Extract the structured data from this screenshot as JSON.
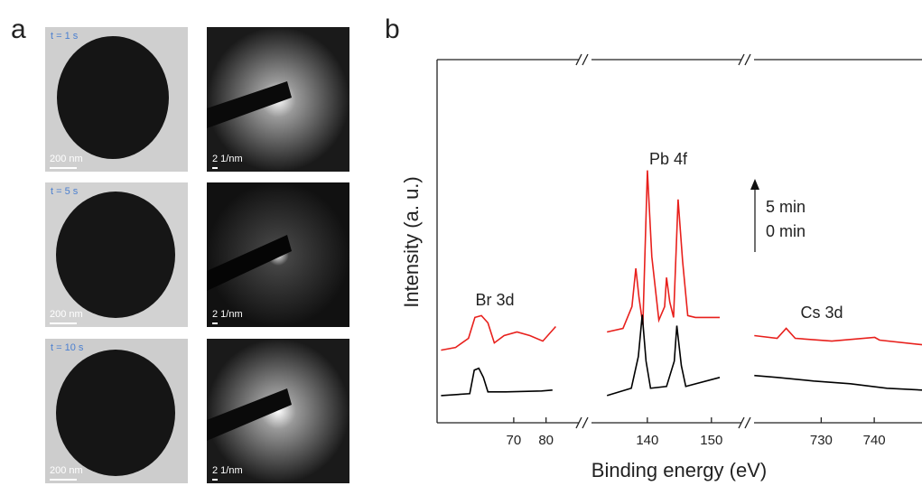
{
  "panel_a": {
    "label": "a",
    "rows": [
      {
        "time": "t = 1 s",
        "scale_real": "200 nm",
        "scale_diffraction": "2 1/nm"
      },
      {
        "time": "t = 5 s",
        "scale_real": "200 nm",
        "scale_diffraction": "2 1/nm"
      },
      {
        "time": "t = 10 s",
        "scale_real": "200 nm",
        "scale_diffraction": "2 1/nm"
      }
    ]
  },
  "chart_data": {
    "type": "line",
    "panel_label": "b",
    "x_label": "Binding energy (eV)",
    "y_label": "Intensity (a. u.)",
    "ylim": [
      0,
      100
    ],
    "series": [
      {
        "name": "5 min",
        "color": "#e8201c"
      },
      {
        "name": "0 min",
        "color": "#000000"
      }
    ],
    "segments": [
      {
        "label": "Br 3d",
        "xlim": [
          46,
          84
        ],
        "xticks": [
          70,
          80
        ],
        "data": [
          {
            "x": [
              47.5,
              52,
              56,
              58,
              60,
              62,
              64,
              67,
              71,
              75,
              79,
              83
            ],
            "values": [
              20,
              20.75,
              23.25,
              29,
              29.5,
              27.5,
              22,
              24,
              25,
              24,
              22.5,
              26.5
            ]
          },
          {
            "x": [
              47.5,
              56.4,
              57.8,
              59.2,
              60.6,
              62,
              67.5,
              78.6,
              82
            ],
            "values": [
              7.5,
              8,
              14.5,
              15,
              12.5,
              8.5,
              8.5,
              8.75,
              9
            ]
          }
        ]
      },
      {
        "label": "Pb 4f",
        "xlim": [
          131,
          152
        ],
        "xticks": [
          140,
          150
        ],
        "data": [
          {
            "x": [
              133.7,
              136.2,
              137.6,
              138.2,
              138.7,
              139.3,
              140,
              140.7,
              141.8,
              142.7,
              143,
              143.5,
              144.1,
              144.8,
              145.5,
              146.3,
              147.5,
              151.3
            ],
            "values": [
              25,
              26,
              32,
              42.5,
              34.5,
              27,
              69.5,
              45.75,
              28.25,
              32,
              40,
              33.25,
              29,
              61.5,
              44.5,
              29.5,
              29,
              29
            ]
          },
          {
            "x": [
              133.7,
              137.5,
              138.6,
              139.2,
              139.8,
              140.5,
              143,
              144.2,
              144.6,
              145.3,
              146,
              151.3
            ],
            "values": [
              7.5,
              9.5,
              18.25,
              29.75,
              17,
              9.5,
              10,
              17,
              26.75,
              15.75,
              10,
              12.5
            ]
          }
        ]
      },
      {
        "label": "Cs 3d",
        "xlim": [
          717,
          749
        ],
        "xticks": [
          730,
          740
        ],
        "data": [
          {
            "x": [
              717.4,
              721.7,
              723.4,
              725.1,
              732,
              740.1,
              741,
              749
            ],
            "values": [
              24,
              23.25,
              26,
              23.25,
              22.5,
              23.5,
              22.75,
              21.5
            ]
          },
          {
            "x": [
              717.4,
              721.7,
              728.6,
              735.5,
              742.4,
              749
            ],
            "values": [
              13,
              12.5,
              11.5,
              10.75,
              9.5,
              9
            ]
          }
        ]
      }
    ]
  }
}
